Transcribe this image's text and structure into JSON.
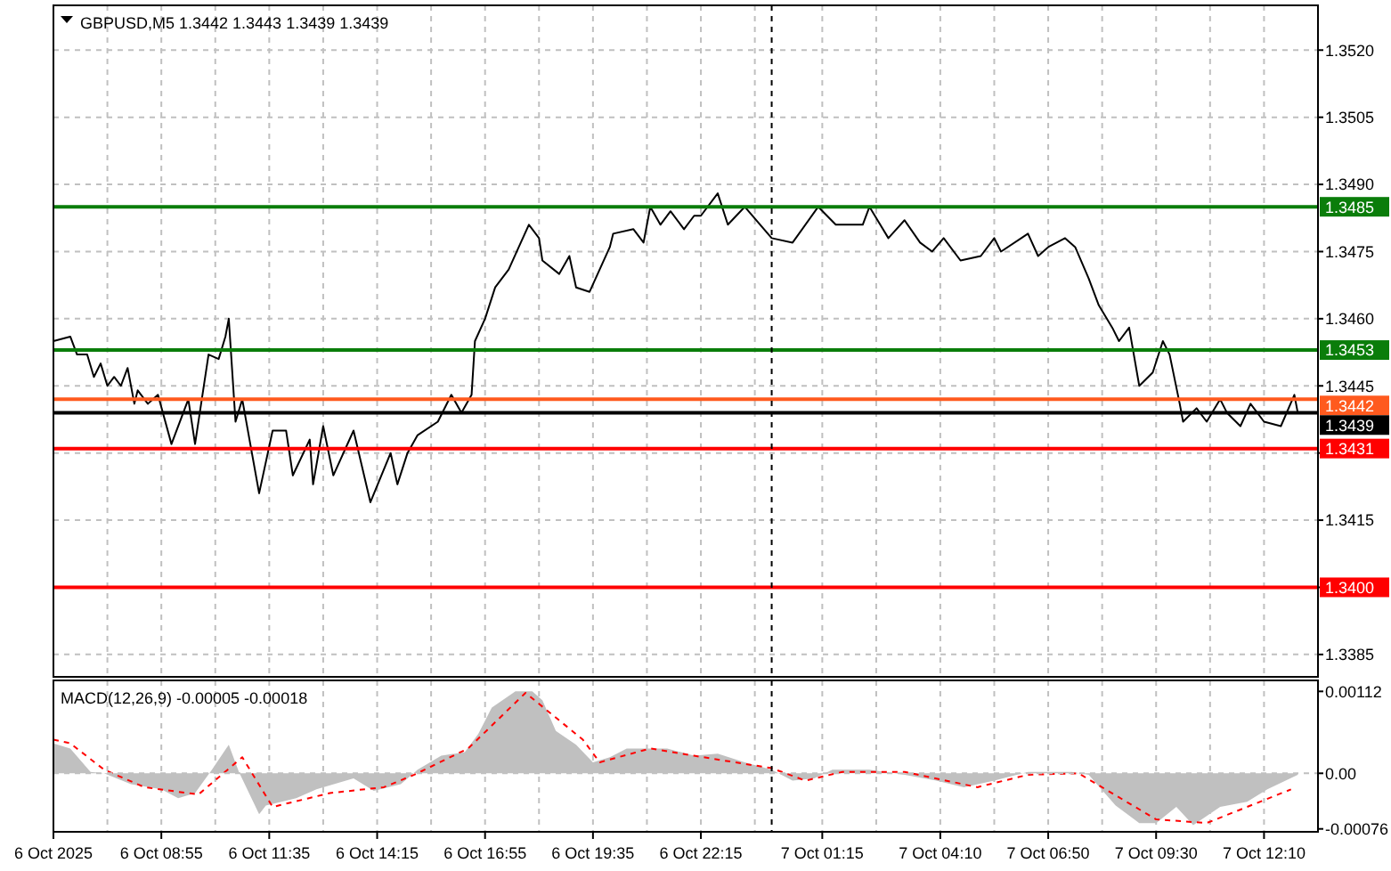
{
  "chart_data": [
    {
      "type": "line",
      "title": "GBPUSD,M5 1.3442 1.3443 1.3439 1.3439",
      "series": [
        {
          "color": "#000000",
          "x": [
            "2025-10-06T06:15",
            "2025-10-06T06:40",
            "2025-10-06T06:50",
            "2025-10-06T07:05",
            "2025-10-06T07:15",
            "2025-10-06T07:25",
            "2025-10-06T07:35",
            "2025-10-06T07:45",
            "2025-10-06T07:55",
            "2025-10-06T08:05",
            "2025-10-06T08:15",
            "2025-10-06T08:20",
            "2025-10-06T08:35",
            "2025-10-06T08:50",
            "2025-10-06T09:10",
            "2025-10-06T09:35",
            "2025-10-06T09:45",
            "2025-10-06T10:05",
            "2025-10-06T10:20",
            "2025-10-06T10:30",
            "2025-10-06T10:35",
            "2025-10-06T10:45",
            "2025-10-06T10:55",
            "2025-10-06T11:20",
            "2025-10-06T11:40",
            "2025-10-06T12:00",
            "2025-10-06T12:10",
            "2025-10-06T12:35",
            "2025-10-06T12:40",
            "2025-10-06T12:55",
            "2025-10-06T13:10",
            "2025-10-06T13:40",
            "2025-10-06T14:05",
            "2025-10-06T14:35",
            "2025-10-06T14:45",
            "2025-10-06T15:00",
            "2025-10-06T15:15",
            "2025-10-06T15:45",
            "2025-10-06T16:05",
            "2025-10-06T16:20",
            "2025-10-06T16:35",
            "2025-10-06T16:40",
            "2025-10-06T16:55",
            "2025-10-06T17:10",
            "2025-10-06T17:30",
            "2025-10-06T17:45",
            "2025-10-06T18:00",
            "2025-10-06T18:15",
            "2025-10-06T18:20",
            "2025-10-06T18:45",
            "2025-10-06T19:00",
            "2025-10-06T19:10",
            "2025-10-06T19:30",
            "2025-10-06T20:00",
            "2025-10-06T20:05",
            "2025-10-06T20:35",
            "2025-10-06T20:50",
            "2025-10-06T21:00",
            "2025-10-06T21:15",
            "2025-10-06T21:30",
            "2025-10-06T21:50",
            "2025-10-06T22:05",
            "2025-10-06T22:15",
            "2025-10-06T22:35",
            "2025-10-06T22:40",
            "2025-10-06T22:55",
            "2025-10-06T23:20",
            "2025-10-07T00:00",
            "2025-10-07T00:31",
            "2025-10-07T01:09",
            "2025-10-07T01:35",
            "2025-10-07T02:15",
            "2025-10-07T02:25",
            "2025-10-07T02:53",
            "2025-10-07T03:17",
            "2025-10-07T03:40",
            "2025-10-07T03:58",
            "2025-10-07T04:15",
            "2025-10-07T04:40",
            "2025-10-07T05:10",
            "2025-10-07T05:30",
            "2025-10-07T05:40",
            "2025-10-07T06:20",
            "2025-10-07T06:35",
            "2025-10-07T06:50",
            "2025-10-07T07:15",
            "2025-10-07T07:30",
            "2025-10-07T07:50",
            "2025-10-07T08:05",
            "2025-10-07T08:25",
            "2025-10-07T08:35",
            "2025-10-07T08:50",
            "2025-10-07T09:05",
            "2025-10-07T09:25",
            "2025-10-07T09:40",
            "2025-10-07T09:50",
            "2025-10-07T10:05",
            "2025-10-07T10:10",
            "2025-10-07T10:30",
            "2025-10-07T10:45",
            "2025-10-07T11:05",
            "2025-10-07T11:15",
            "2025-10-07T11:35",
            "2025-10-07T11:50",
            "2025-10-07T12:10",
            "2025-10-07T12:35",
            "2025-10-07T12:55",
            "2025-10-07T13:00"
          ],
          "values": [
            1.3455,
            1.3456,
            1.3452,
            1.3452,
            1.3447,
            1.345,
            1.3445,
            1.3447,
            1.3445,
            1.3449,
            1.3441,
            1.3444,
            1.3441,
            1.3443,
            1.3432,
            1.3442,
            1.3432,
            1.3452,
            1.3451,
            1.3456,
            1.346,
            1.3437,
            1.3442,
            1.3421,
            1.3435,
            1.3435,
            1.3425,
            1.3433,
            1.3423,
            1.3436,
            1.3425,
            1.3435,
            1.3419,
            1.343,
            1.3423,
            1.343,
            1.3434,
            1.3437,
            1.3443,
            1.3439,
            1.3443,
            1.3455,
            1.346,
            1.3467,
            1.3471,
            1.3476,
            1.3481,
            1.3478,
            1.3473,
            1.347,
            1.3474,
            1.3467,
            1.3466,
            1.3476,
            1.3479,
            1.348,
            1.3477,
            1.3485,
            1.3481,
            1.3484,
            1.348,
            1.3483,
            1.3483,
            1.3487,
            1.3488,
            1.3481,
            1.3485,
            1.3478,
            1.3477,
            1.3485,
            1.3481,
            1.3481,
            1.3485,
            1.3478,
            1.3482,
            1.3477,
            1.3475,
            1.3478,
            1.3473,
            1.3474,
            1.3478,
            1.3475,
            1.3479,
            1.3474,
            1.3476,
            1.3478,
            1.3476,
            1.3469,
            1.3463,
            1.3458,
            1.3455,
            1.3458,
            1.3445,
            1.3448,
            1.3455,
            1.3452,
            1.3441,
            1.3437,
            1.344,
            1.3437,
            1.3442,
            1.3439,
            1.3436,
            1.3441,
            1.3437,
            1.3436,
            1.3443,
            1.3439
          ]
        }
      ],
      "xlim": [
        "2025-10-06T06:15",
        "2025-10-07T13:30"
      ],
      "xticks": [
        {
          "value": "2025-10-06T06:15",
          "label": null
        },
        {
          "value": "2025-10-06T07:35",
          "label": null
        },
        {
          "value": "2025-10-06T08:55",
          "label": null
        },
        {
          "value": "2025-10-06T10:15",
          "label": null
        },
        {
          "value": "2025-10-06T11:35",
          "label": null
        },
        {
          "value": "2025-10-06T12:55",
          "label": null
        },
        {
          "value": "2025-10-06T14:15",
          "label": null
        },
        {
          "value": "2025-10-06T15:35",
          "label": null
        },
        {
          "value": "2025-10-06T16:55",
          "label": null
        },
        {
          "value": "2025-10-06T18:15",
          "label": null
        },
        {
          "value": "2025-10-06T19:35",
          "label": null
        },
        {
          "value": "2025-10-06T20:55",
          "label": null
        },
        {
          "value": "2025-10-06T22:15",
          "label": null
        },
        {
          "value": "2025-10-06T23:35",
          "label": null
        },
        {
          "value": "2025-10-07T01:15",
          "label": null
        },
        {
          "value": "2025-10-07T02:35",
          "label": null
        },
        {
          "value": "2025-10-07T04:10",
          "label": null
        },
        {
          "value": "2025-10-07T05:30",
          "label": null
        },
        {
          "value": "2025-10-07T06:50",
          "label": null
        },
        {
          "value": "2025-10-07T08:10",
          "label": null
        },
        {
          "value": "2025-10-07T09:30",
          "label": null
        },
        {
          "value": "2025-10-07T10:50",
          "label": null
        },
        {
          "value": "2025-10-07T12:10",
          "label": null
        }
      ],
      "ylim": [
        1.338,
        1.353
      ],
      "yticks": [
        {
          "value": 1.3385,
          "label": "1.3385"
        },
        {
          "value": 1.34,
          "label": null
        },
        {
          "value": 1.3415,
          "label": "1.3415"
        },
        {
          "value": 1.343,
          "label": null
        },
        {
          "value": 1.3445,
          "label": "1.3445"
        },
        {
          "value": 1.346,
          "label": "1.3460"
        },
        {
          "value": 1.3475,
          "label": "1.3475"
        },
        {
          "value": 1.349,
          "label": "1.3490"
        },
        {
          "value": 1.3505,
          "label": "1.3505"
        },
        {
          "value": 1.352,
          "label": "1.3520"
        }
      ],
      "grid": true,
      "tick_labels": "y",
      "ref_lines": [
        {
          "axis": "y",
          "value": 1.3485,
          "label": "1.3485",
          "color": "#0a7d0a"
        },
        {
          "axis": "y",
          "value": 1.3453,
          "label": "1.3453",
          "color": "#0a7d0a"
        },
        {
          "axis": "y",
          "value": 1.3442,
          "label": "1.3442",
          "color": "#ff5a1e"
        },
        {
          "axis": "y",
          "value": 1.3439,
          "label": "1.3439",
          "color": "#000000"
        },
        {
          "axis": "y",
          "value": 1.3431,
          "label": "1.3431",
          "color": "#ff0000"
        },
        {
          "axis": "y",
          "value": 1.34,
          "label": "1.3400",
          "color": "#ff0000"
        },
        {
          "axis": "x",
          "value": "2025-10-07T00:00",
          "color": "#000000",
          "line_style": "dashed"
        }
      ]
    },
    {
      "type": "area",
      "title": "MACD(12,26,9) -0.00005 -0.00018",
      "series": [
        {
          "color": "#c0c0c0",
          "x": [
            "2025-10-06T06:15",
            "2025-10-06T06:40",
            "2025-10-06T07:10",
            "2025-10-06T07:30",
            "2025-10-06T08:10",
            "2025-10-06T08:55",
            "2025-10-06T09:20",
            "2025-10-06T09:45",
            "2025-10-06T10:10",
            "2025-10-06T10:35",
            "2025-10-06T10:50",
            "2025-10-06T11:20",
            "2025-10-06T11:30",
            "2025-10-06T12:15",
            "2025-10-06T12:45",
            "2025-10-06T13:40",
            "2025-10-06T14:10",
            "2025-10-06T14:50",
            "2025-10-06T15:15",
            "2025-10-06T15:50",
            "2025-10-06T16:25",
            "2025-10-06T16:45",
            "2025-10-06T17:05",
            "2025-10-06T17:40",
            "2025-10-06T18:05",
            "2025-10-06T18:20",
            "2025-10-06T18:40",
            "2025-10-06T19:10",
            "2025-10-06T19:35",
            "2025-10-06T20:00",
            "2025-10-06T20:25",
            "2025-10-06T21:25",
            "2025-10-06T22:05",
            "2025-10-06T22:40",
            "2025-10-06T23:20",
            "2025-10-07T00:00",
            "2025-10-07T00:31",
            "2025-10-07T01:03",
            "2025-10-07T01:30",
            "2025-10-07T02:25",
            "2025-10-07T03:17",
            "2025-10-07T04:04",
            "2025-10-07T04:45",
            "2025-10-07T05:30",
            "2025-10-07T06:20",
            "2025-10-07T07:25",
            "2025-10-07T07:50",
            "2025-10-07T08:30",
            "2025-10-07T09:05",
            "2025-10-07T09:30",
            "2025-10-07T10:00",
            "2025-10-07T10:25",
            "2025-10-07T11:05",
            "2025-10-07T11:45",
            "2025-10-07T12:15",
            "2025-10-07T13:00"
          ],
          "values": [
            0.00041,
            0.00034,
            2e-05,
            0,
            -0.00015,
            -0.00022,
            -0.00034,
            -0.00027,
            5e-05,
            0.00039,
            2e-05,
            -0.00056,
            -0.00044,
            -0.00034,
            -0.00022,
            -7e-05,
            -0.00024,
            -0.00015,
            5e-05,
            0.00024,
            0.00029,
            0.00054,
            0.0009,
            0.00112,
            0.00112,
            0.001,
            0.00058,
            0.00039,
            0.00015,
            0.00022,
            0.00034,
            0.00034,
            0.00024,
            0.00027,
            0.00015,
            5e-05,
            -0.0001,
            -7e-05,
            5e-05,
            5e-05,
            -2e-05,
            -0.0001,
            -0.00019,
            -0.0001,
            2e-05,
            2e-05,
            -2e-05,
            -0.00044,
            -0.00068,
            -0.00068,
            -0.00046,
            -0.00071,
            -0.00046,
            -0.00039,
            -0.00022,
            -2e-05
          ]
        },
        {
          "type": "line",
          "color": "#ff0000",
          "line_style": "dashed",
          "x": [
            "2025-10-06T06:15",
            "2025-10-06T06:40",
            "2025-10-06T07:30",
            "2025-10-06T08:30",
            "2025-10-06T09:50",
            "2025-10-06T10:55",
            "2025-10-06T11:40",
            "2025-10-06T13:05",
            "2025-10-06T14:25",
            "2025-10-06T15:10",
            "2025-10-06T16:30",
            "2025-10-06T17:55",
            "2025-10-06T19:20",
            "2025-10-06T19:45",
            "2025-10-06T21:00",
            "2025-10-06T22:05",
            "2025-10-07T00:00",
            "2025-10-07T00:50",
            "2025-10-07T01:45",
            "2025-10-07T03:17",
            "2025-10-07T05:05",
            "2025-10-07T06:20",
            "2025-10-07T07:35",
            "2025-10-07T09:30",
            "2025-10-07T10:45",
            "2025-10-07T12:50"
          ],
          "values": [
            0.00046,
            0.00041,
            5e-05,
            -0.00019,
            -0.00029,
            0.00022,
            -0.00046,
            -0.00027,
            -0.00019,
            -2e-05,
            0.00034,
            0.0011,
            0.00046,
            0.00015,
            0.00034,
            0.00024,
            7e-05,
            -0.0001,
            2e-05,
            2e-05,
            -0.00019,
            -2e-05,
            0,
            -0.00063,
            -0.00068,
            -0.00022
          ]
        }
      ],
      "xlim": [
        "2025-10-06T06:15",
        "2025-10-07T13:30"
      ],
      "xticks": [
        {
          "value": "2025-10-06T06:15",
          "label": "6 Oct 2025"
        },
        {
          "value": "2025-10-06T07:35",
          "label": null
        },
        {
          "value": "2025-10-06T08:55",
          "label": "6 Oct 08:55"
        },
        {
          "value": "2025-10-06T10:15",
          "label": null
        },
        {
          "value": "2025-10-06T11:35",
          "label": "6 Oct 11:35"
        },
        {
          "value": "2025-10-06T12:55",
          "label": null
        },
        {
          "value": "2025-10-06T14:15",
          "label": "6 Oct 14:15"
        },
        {
          "value": "2025-10-06T15:35",
          "label": null
        },
        {
          "value": "2025-10-06T16:55",
          "label": "6 Oct 16:55"
        },
        {
          "value": "2025-10-06T18:15",
          "label": null
        },
        {
          "value": "2025-10-06T19:35",
          "label": "6 Oct 19:35"
        },
        {
          "value": "2025-10-06T20:55",
          "label": null
        },
        {
          "value": "2025-10-06T22:15",
          "label": "6 Oct 22:15"
        },
        {
          "value": "2025-10-06T23:35",
          "label": null
        },
        {
          "value": "2025-10-07T01:15",
          "label": "7 Oct 01:15"
        },
        {
          "value": "2025-10-07T02:35",
          "label": null
        },
        {
          "value": "2025-10-07T04:10",
          "label": "7 Oct 04:10"
        },
        {
          "value": "2025-10-07T05:30",
          "label": null
        },
        {
          "value": "2025-10-07T06:50",
          "label": "7 Oct 06:50"
        },
        {
          "value": "2025-10-07T08:10",
          "label": null
        },
        {
          "value": "2025-10-07T09:30",
          "label": "7 Oct 09:30"
        },
        {
          "value": "2025-10-07T10:50",
          "label": null
        },
        {
          "value": "2025-10-07T12:10",
          "label": "7 Oct 12:10"
        }
      ],
      "ylim": [
        -0.0008,
        0.00127
      ],
      "yticks": [
        {
          "value": -0.00076,
          "label": "-0.00076"
        },
        {
          "value": 0,
          "label": "0.00"
        },
        {
          "value": 0.00112,
          "label": "0.00112"
        }
      ],
      "grid": "x",
      "ref_lines": [
        {
          "axis": "y",
          "value": 0,
          "color": "#c0c0c0",
          "line_style": "dashed"
        },
        {
          "axis": "x",
          "value": "2025-10-07T00:00",
          "color": "#000000",
          "line_style": "dashed"
        }
      ]
    }
  ]
}
